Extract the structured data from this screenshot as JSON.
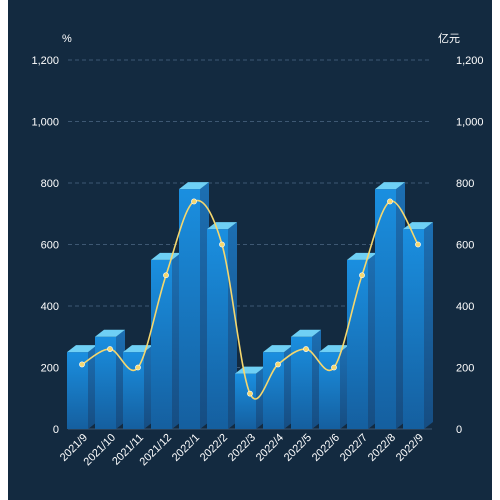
{
  "chart_data": {
    "type": "bar",
    "categories": [
      "2021/9",
      "2021/10",
      "2021/11",
      "2021/12",
      "2022/1",
      "2022/2",
      "2022/3",
      "2022/4",
      "2022/5",
      "2022/6",
      "2022/7",
      "2022/8",
      "2022/9"
    ],
    "series": [
      {
        "type": "bar",
        "axis": "right",
        "values": [
          250,
          300,
          250,
          550,
          780,
          650,
          180,
          250,
          300,
          250,
          550,
          780,
          650
        ]
      },
      {
        "type": "line",
        "axis": "left",
        "values": [
          210,
          260,
          200,
          500,
          740,
          600,
          115,
          210,
          260,
          200,
          500,
          740,
          600
        ]
      }
    ],
    "y_left": {
      "unit": "%",
      "ticks": [
        "0",
        "200",
        "400",
        "600",
        "800",
        "1,000",
        "1,200"
      ],
      "ylim": [
        0,
        1200
      ]
    },
    "y_right": {
      "unit": "亿元",
      "ticks": [
        "0",
        "200",
        "400",
        "600",
        "800",
        "1,000",
        "1,200"
      ],
      "ylim": [
        0,
        1200
      ]
    },
    "grid": true,
    "colors": {
      "bar_front": "#1679c5",
      "bar_top": "#6fd0f5",
      "bar_side": "#1a5f9e",
      "line": "#f5d76e",
      "grid": "#3e5873",
      "background": "#132a40"
    }
  }
}
